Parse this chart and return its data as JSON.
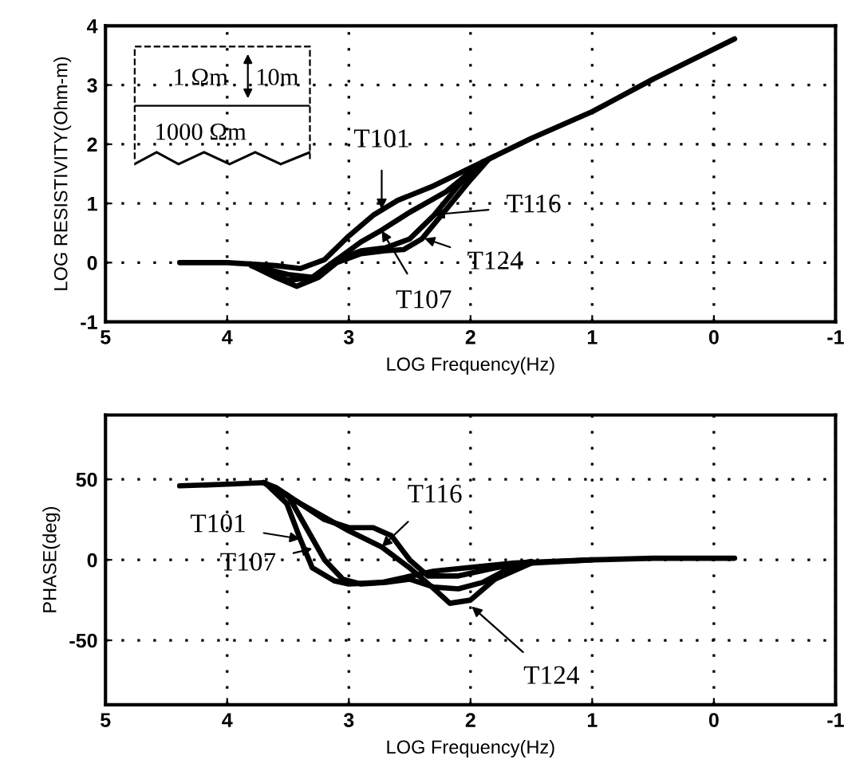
{
  "chart_data": [
    {
      "type": "line",
      "xlabel": "LOG Frequency(Hz)",
      "ylabel": "LOG RESISTIVITY(Ohm-m)",
      "xlim": [
        5,
        -1
      ],
      "xticks": [
        5,
        4,
        3,
        2,
        1,
        0,
        -1
      ],
      "ylim": [
        -1,
        4
      ],
      "yticks": [
        -1,
        0,
        1,
        2,
        3,
        4
      ],
      "grid": true,
      "line_style": "solid",
      "series": [
        {
          "color": "#000000",
          "x": [
            4.39,
            4.0,
            3.6,
            3.4,
            3.2,
            3.0,
            2.8,
            2.6,
            2.3,
            2.0,
            1.8,
            1.5,
            1.0,
            0.5,
            -0.17
          ],
          "values": [
            0,
            0,
            -0.05,
            -0.1,
            0.05,
            0.45,
            0.8,
            1.05,
            1.3,
            1.6,
            1.8,
            2.1,
            2.55,
            3.1,
            3.78
          ]
        },
        {
          "color": "#000000",
          "x": [
            3.8,
            3.5,
            3.3,
            3.1,
            2.9,
            2.73,
            2.5,
            2.2,
            1.9,
            1.8
          ],
          "values": [
            -0.05,
            -0.2,
            -0.25,
            0.05,
            0.35,
            0.55,
            0.85,
            1.2,
            1.7,
            1.8
          ]
        },
        {
          "color": "#000000",
          "x": [
            3.8,
            3.5,
            3.3,
            3.1,
            2.9,
            2.7,
            2.5,
            2.3,
            2.1,
            1.9
          ],
          "values": [
            -0.05,
            -0.3,
            -0.25,
            0.05,
            0.2,
            0.25,
            0.4,
            0.8,
            1.3,
            1.7
          ]
        },
        {
          "color": "#000000",
          "x": [
            3.8,
            3.6,
            3.43,
            3.25,
            3.1,
            2.9,
            2.7,
            2.55,
            2.4,
            2.2,
            2.0,
            1.85
          ],
          "values": [
            -0.05,
            -0.25,
            -0.4,
            -0.25,
            0.0,
            0.15,
            0.2,
            0.22,
            0.4,
            0.9,
            1.4,
            1.75
          ]
        }
      ],
      "annotations": [
        "1 Ωm",
        "10m",
        "1000 Ωm",
        {
          "text": "T101",
          "x": 2.73,
          "y": 0.9
        },
        {
          "text": "T116",
          "x": 2.3,
          "y": 0.81
        },
        {
          "text": "T124",
          "x": 2.38,
          "y": 0.41
        },
        {
          "text": "T107",
          "x": 2.73,
          "y": 0.54
        }
      ]
    },
    {
      "type": "line",
      "xlabel": "LOG Frequency(Hz)",
      "ylabel": "PHASE(deg)",
      "xlim": [
        5,
        -1
      ],
      "xticks": [
        5,
        4,
        3,
        2,
        1,
        0,
        -1
      ],
      "ylim": [
        -90,
        90
      ],
      "yticks": [
        -50,
        0,
        50
      ],
      "grid": true,
      "line_style": "solid",
      "series": [
        {
          "color": "#000000",
          "x": [
            4.39,
            4.0,
            3.69,
            3.51,
            3.4,
            3.3,
            3.12,
            3.0,
            2.73,
            2.3,
            1.64,
            1.0,
            0.5,
            -0.17
          ],
          "values": [
            46,
            47,
            48,
            35,
            13,
            -5,
            -13,
            -15,
            -14,
            -7,
            -2,
            0,
            1,
            1
          ]
        },
        {
          "color": "#000000",
          "x": [
            3.7,
            3.5,
            3.35,
            3.2,
            3.05,
            2.9,
            2.7,
            2.5,
            2.3,
            2.1,
            1.9,
            1.7,
            1.5,
            1.0
          ],
          "values": [
            48,
            40,
            20,
            0,
            -12,
            -15,
            -14,
            -12,
            -17,
            -18,
            -14,
            -6,
            -2,
            0
          ]
        },
        {
          "color": "#000000",
          "x": [
            3.7,
            3.6,
            3.4,
            3.2,
            3.0,
            2.8,
            2.65,
            2.5,
            2.35,
            2.1,
            1.8,
            1.5
          ],
          "values": [
            48,
            45,
            35,
            25,
            20,
            20,
            15,
            0,
            -10,
            -10,
            -5,
            -1
          ]
        },
        {
          "color": "#000000",
          "x": [
            3.7,
            3.4,
            3.0,
            2.73,
            2.5,
            2.3,
            2.17,
            2.0,
            1.8,
            1.5
          ],
          "values": [
            48,
            35,
            18,
            8,
            -5,
            -18,
            -27,
            -25,
            -12,
            -2
          ]
        }
      ],
      "annotations": [
        {
          "text": "T101",
          "x": 3.4,
          "y": 13
        },
        {
          "text": "T116",
          "x": 2.73,
          "y": 8
        },
        {
          "text": "T107",
          "x": 3.3,
          "y": 7
        },
        {
          "text": "T124",
          "x": 1.99,
          "y": -29
        }
      ]
    }
  ]
}
